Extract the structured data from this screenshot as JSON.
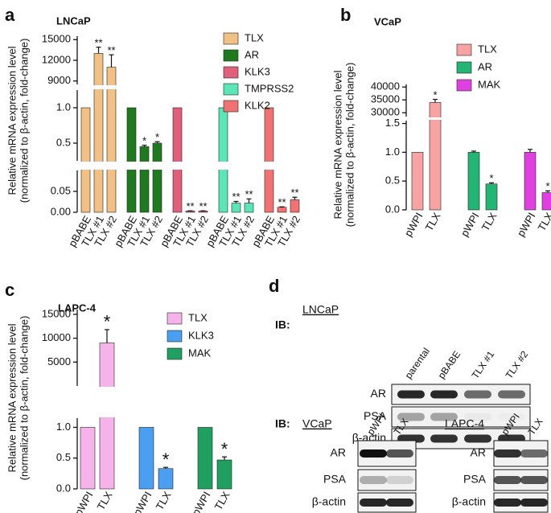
{
  "chart_data": [
    {
      "type": "bar",
      "panel": "a",
      "title": "LNCaP",
      "ylabel": [
        "Relative mRNA expression level",
        "(normalized to β-actin, fold-change)"
      ],
      "categories": [
        "pBABE",
        "TLX #1",
        "TLX #2"
      ],
      "y_segments": [
        {
          "ylim": [
            0,
            0.1
          ],
          "yticks": [
            {
              "value": 0,
              "label": "0.00"
            },
            0.05
          ]
        },
        {
          "ylim": [
            0.25,
            1.25
          ],
          "yticks": [
            0.5,
            {
              "value": 1,
              "label": "1.0"
            }
          ]
        },
        {
          "ylim": [
            8500,
            15500
          ],
          "yticks": [
            9000,
            12000,
            15000
          ]
        }
      ],
      "series": [
        {
          "name": "TLX",
          "color": "#f0c084",
          "values": [
            1,
            13000,
            11000
          ],
          "errors": [
            0,
            900,
            1800
          ],
          "annotations": [
            null,
            "**",
            "**"
          ]
        },
        {
          "name": "AR",
          "color": "#1f7a1f",
          "values": [
            1,
            0.45,
            0.5
          ],
          "errors": [
            0,
            0.02,
            0.02
          ],
          "annotations": [
            null,
            "*",
            "*"
          ]
        },
        {
          "name": "KLK3",
          "color": "#e0607c",
          "values": [
            1,
            0.003,
            0.003
          ],
          "errors": [
            0,
            0.0005,
            0.0005
          ],
          "annotations": [
            null,
            "**",
            "**"
          ]
        },
        {
          "name": "TMPRSS2",
          "color": "#5ce6b8",
          "values": [
            1,
            0.022,
            0.022
          ],
          "errors": [
            0,
            0.004,
            0.01
          ],
          "annotations": [
            null,
            "**",
            "**"
          ]
        },
        {
          "name": "KLK2",
          "color": "#f07272",
          "values": [
            1,
            0.012,
            0.03
          ],
          "errors": [
            0,
            0.001,
            0.006
          ],
          "annotations": [
            null,
            "**",
            "**"
          ]
        }
      ],
      "legend": "upper right"
    },
    {
      "type": "bar",
      "panel": "b",
      "title": "VCaP",
      "ylabel": [
        "Relative mRNA expression level",
        "(normalized to β-actin, fold-change)"
      ],
      "categories": [
        "pWPI",
        "TLX"
      ],
      "y_segments": [
        {
          "ylim": [
            0,
            1.55
          ],
          "yticks": [
            {
              "value": 0,
              "label": "0.0"
            },
            0.5,
            {
              "value": 1,
              "label": "1.0"
            },
            1.5
          ]
        },
        {
          "ylim": [
            28500,
            41000
          ],
          "yticks": [
            30000,
            35000,
            40000
          ]
        }
      ],
      "series": [
        {
          "name": "TLX",
          "color": "#f7a3a3",
          "values": [
            1,
            34000
          ],
          "errors": [
            0,
            1200
          ],
          "annotations": [
            null,
            "*"
          ]
        },
        {
          "name": "AR",
          "color": "#22b573",
          "values": [
            1,
            0.45
          ],
          "errors": [
            0.02,
            0.02
          ],
          "annotations": [
            null,
            "*"
          ]
        },
        {
          "name": "MAK",
          "color": "#e040e0",
          "values": [
            1,
            0.3
          ],
          "errors": [
            0.05,
            0.03
          ],
          "annotations": [
            null,
            "*"
          ]
        }
      ],
      "legend": "upper right"
    },
    {
      "type": "bar",
      "panel": "c",
      "title": "LAPC-4",
      "ylabel": [
        "Relative mRNA expression level",
        "(normalized to β-actin, fold-change)"
      ],
      "categories": [
        "pWPI",
        "TLX"
      ],
      "y_segments": [
        {
          "ylim": [
            0,
            1.15
          ],
          "yticks": [
            {
              "value": 0,
              "label": "0.0"
            },
            0.5,
            {
              "value": 1,
              "label": "1.0"
            }
          ]
        },
        {
          "ylim": [
            0,
            16000
          ],
          "yticks": [
            5000,
            10000,
            15000
          ]
        }
      ],
      "series": [
        {
          "name": "TLX",
          "color": "#f6b3ea",
          "values": [
            1,
            9000
          ],
          "errors": [
            0,
            2800
          ],
          "annotations": [
            null,
            "*"
          ]
        },
        {
          "name": "KLK3",
          "color": "#4a9ff0",
          "values": [
            1,
            0.33
          ],
          "errors": [
            0,
            0.02
          ],
          "annotations": [
            null,
            "*"
          ]
        },
        {
          "name": "MAK",
          "color": "#1fa060",
          "values": [
            1,
            0.47
          ],
          "errors": [
            0,
            0.05
          ],
          "annotations": [
            null,
            "*"
          ]
        }
      ],
      "legend": "right"
    }
  ],
  "blot": {
    "panel": "d",
    "groups": [
      {
        "ib": "IB:",
        "cell": "LNCaP",
        "lanes": [
          "parental",
          "pBABE",
          "TLX #1",
          "TLX #2"
        ],
        "rows": [
          "AR",
          "PSA",
          "β-actin"
        ]
      },
      {
        "ib": "IB:",
        "cell": "VCaP",
        "lanes": [
          "pWPI",
          "TLX"
        ],
        "rows": [
          "AR",
          "PSA",
          "β-actin"
        ]
      },
      {
        "cell": "LAPC-4",
        "lanes": [
          "pWPI",
          "TLX"
        ],
        "rows": [
          "AR",
          "PSA",
          "β-actin"
        ]
      }
    ]
  }
}
